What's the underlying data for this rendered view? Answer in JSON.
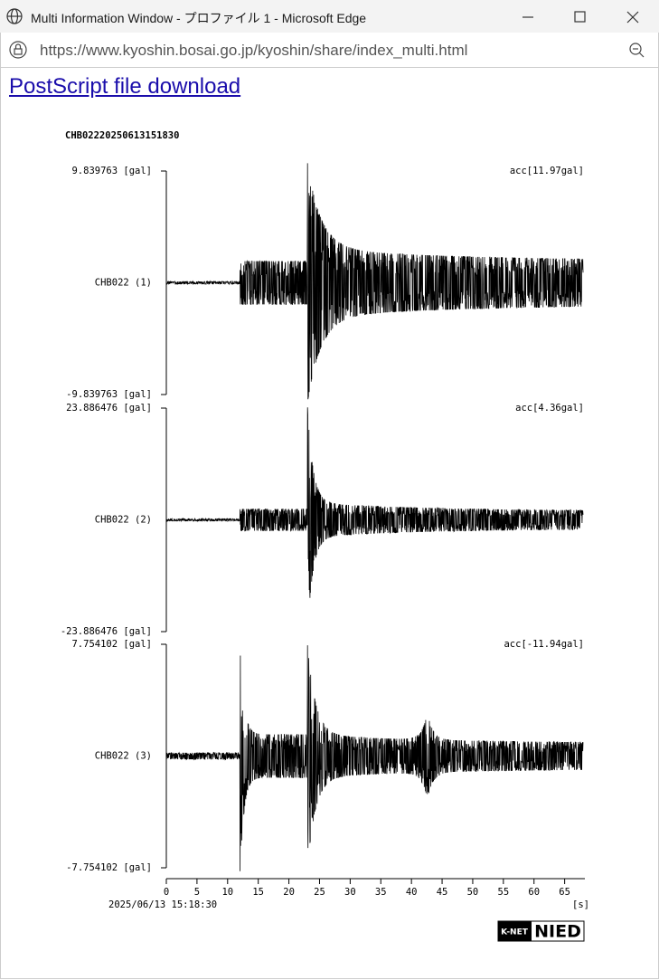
{
  "window": {
    "title": "Multi Information Window - プロファイル 1 - Microsoft Edge"
  },
  "address": {
    "url": "https://www.kyoshin.bosai.go.jp/kyoshin/share/index_multi.html"
  },
  "content": {
    "link": "PostScript file download"
  },
  "plot": {
    "id": "CHB02220250613151830",
    "traces": [
      {
        "max_label": "9.839763 [gal]",
        "min_label": "-9.839763 [gal]",
        "name": "CHB022 (1)",
        "peak": "acc[11.97gal]"
      },
      {
        "max_label": "23.886476 [gal]",
        "min_label": "-23.886476 [gal]",
        "name": "CHB022 (2)",
        "peak": "acc[4.36gal]"
      },
      {
        "max_label": "7.754102 [gal]",
        "min_label": "-7.754102 [gal]",
        "name": "CHB022 (3)",
        "peak": "acc[-11.94gal]"
      }
    ],
    "xlim": [
      0,
      68.3
    ],
    "xticks": [
      0,
      5,
      10,
      15,
      20,
      25,
      30,
      35,
      40,
      45,
      50,
      55,
      60,
      65
    ],
    "time": "2025/06/13 15:18:30",
    "unit": "[s]"
  },
  "logo": {
    "left": "K-NET",
    "right": "NIED"
  }
}
